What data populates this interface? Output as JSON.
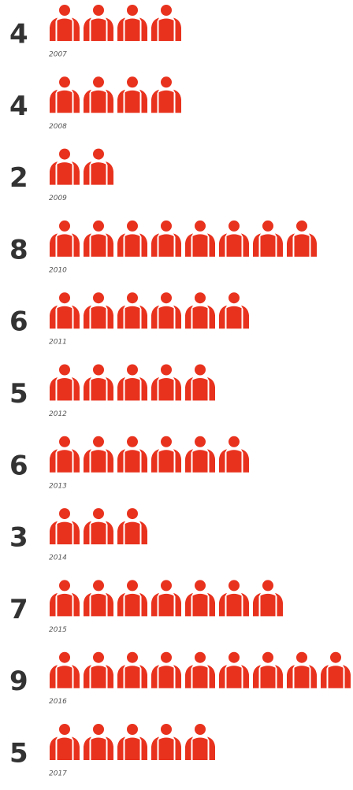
{
  "chart_data": {
    "type": "pictograph",
    "categories": [
      "2007",
      "2008",
      "2009",
      "2010",
      "2011",
      "2012",
      "2013",
      "2014",
      "2015",
      "2016",
      "2017"
    ],
    "values": [
      4,
      4,
      2,
      8,
      6,
      5,
      6,
      3,
      7,
      9,
      5
    ],
    "color": "#e8321e"
  }
}
